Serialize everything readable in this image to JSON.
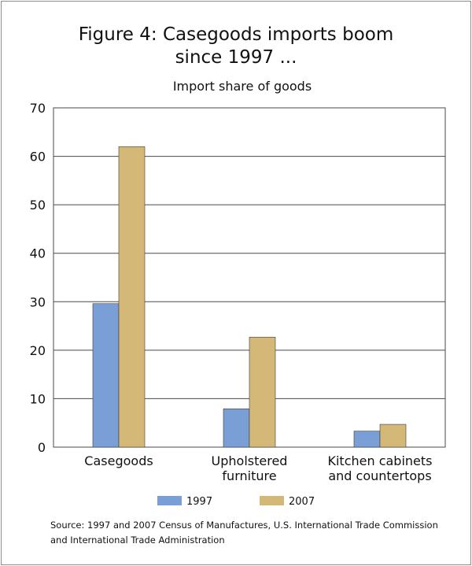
{
  "figure": {
    "title_line1": "Figure 4: Casegoods imports boom",
    "title_line2": "since 1997 ...",
    "subtitle": "Import share of goods",
    "source_line1": "Source: 1997 and 2007 Census of Manufactures, U.S. International Trade Commission",
    "source_line2": "and International Trade Administration"
  },
  "chart_data": {
    "type": "bar",
    "title": "Figure 4: Casegoods imports boom since 1997 ...",
    "subtitle": "Import share of goods",
    "categories": [
      [
        "Casegoods"
      ],
      [
        "Upholstered",
        "furniture"
      ],
      [
        "Kitchen cabinets",
        "and countertops"
      ]
    ],
    "series": [
      {
        "name": "1997",
        "color": "#7a9fd6",
        "values": [
          29.6,
          7.9,
          3.3
        ]
      },
      {
        "name": "2007",
        "color": "#d4b877",
        "values": [
          62.0,
          22.7,
          4.7
        ]
      }
    ],
    "ylim": [
      0,
      70
    ],
    "yticks": [
      0,
      10,
      20,
      30,
      40,
      50,
      60,
      70
    ],
    "grid": true,
    "legend_position": "bottom"
  }
}
